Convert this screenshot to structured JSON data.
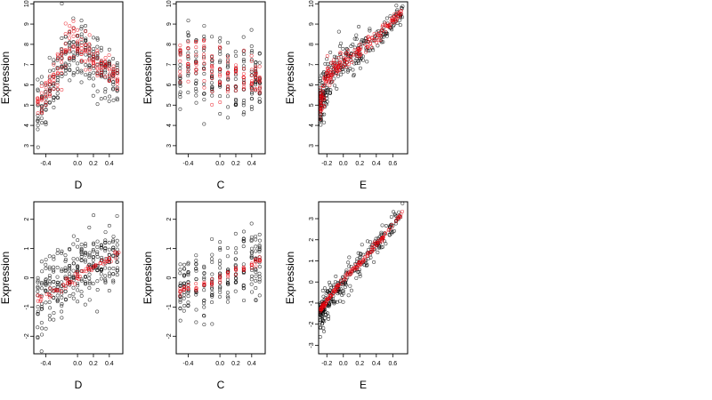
{
  "colors": {
    "black_points": "#000000",
    "red_points": "#e8000b",
    "frame": "#000000",
    "background": "#ffffff"
  },
  "chart_data": [
    {
      "type": "scatter",
      "id": "top-left",
      "xlabel": "D",
      "ylabel": "Expression",
      "xlim": [
        -0.55,
        0.57
      ],
      "ylim": [
        2.6,
        10.1
      ],
      "xticks": [
        -0.4,
        0.0,
        0.2,
        0.4
      ],
      "xtick_labels": [
        "-0.4",
        "0.0",
        "0.2",
        "0.4"
      ],
      "yticks": [
        3,
        4,
        5,
        6,
        7,
        8,
        9,
        10
      ],
      "ytick_labels": [
        "3",
        "4",
        "5",
        "6",
        "7",
        "8",
        "9",
        "10"
      ],
      "marker": "open-circle",
      "grid": false,
      "series": [
        {
          "role": "observed",
          "color": "#000000",
          "pattern": "vertical_strips",
          "x_levels": [
            -0.5,
            -0.45,
            -0.4,
            -0.35,
            -0.3,
            -0.25,
            -0.2,
            -0.15,
            -0.1,
            -0.05,
            0.0,
            0.05,
            0.1,
            0.15,
            0.2,
            0.25,
            0.3,
            0.35,
            0.4,
            0.45,
            0.5
          ],
          "center": [
            4.5,
            5.0,
            5.2,
            5.6,
            6.0,
            6.5,
            7.0,
            7.4,
            7.8,
            7.9,
            7.8,
            7.6,
            7.5,
            7.2,
            7.0,
            6.9,
            6.8,
            6.7,
            6.5,
            6.4,
            6.4
          ],
          "spread": [
            1.6,
            1.5,
            1.3,
            1.3,
            1.4,
            1.5,
            1.6,
            1.6,
            1.5,
            1.5,
            1.4,
            1.4,
            1.4,
            1.4,
            1.4,
            1.4,
            1.4,
            1.3,
            1.3,
            1.3,
            1.2
          ],
          "points_per_level": 12
        },
        {
          "role": "fitted",
          "color": "#e8000b",
          "pattern": "vertical_strips",
          "x_levels": [
            -0.5,
            -0.45,
            -0.4,
            -0.35,
            -0.3,
            -0.25,
            -0.2,
            -0.15,
            -0.1,
            -0.05,
            0.0,
            0.05,
            0.1,
            0.15,
            0.2,
            0.25,
            0.3,
            0.35,
            0.4,
            0.45,
            0.5
          ],
          "center": [
            5.0,
            5.2,
            5.5,
            5.9,
            6.4,
            6.9,
            7.3,
            7.7,
            8.0,
            8.1,
            8.0,
            7.8,
            7.6,
            7.4,
            7.2,
            7.1,
            7.0,
            6.9,
            6.7,
            6.6,
            6.5
          ],
          "spread": [
            0.8,
            0.8,
            0.8,
            0.9,
            1.0,
            1.1,
            1.2,
            1.3,
            1.2,
            1.2,
            1.1,
            1.0,
            1.0,
            1.0,
            0.9,
            0.9,
            0.9,
            0.8,
            0.8,
            0.7,
            0.7
          ],
          "points_per_level": 8
        }
      ]
    },
    {
      "type": "scatter",
      "id": "top-middle",
      "xlabel": "C",
      "ylabel": "Expression",
      "xlim": [
        -0.55,
        0.57
      ],
      "ylim": [
        2.6,
        10.1
      ],
      "xticks": [
        -0.4,
        0.0,
        0.2,
        0.4
      ],
      "xtick_labels": [
        "-0.4",
        "0.0",
        "0.2",
        "0.4"
      ],
      "yticks": [
        3,
        4,
        5,
        6,
        7,
        8,
        9,
        10
      ],
      "ytick_labels": [
        "3",
        "4",
        "5",
        "6",
        "7",
        "8",
        "9",
        "10"
      ],
      "marker": "open-circle",
      "grid": false,
      "series": [
        {
          "role": "observed",
          "color": "#000000",
          "pattern": "vertical_strips",
          "x_levels": [
            -0.5,
            -0.4,
            -0.3,
            -0.2,
            -0.1,
            0.0,
            0.1,
            0.2,
            0.3,
            0.4,
            0.45,
            0.5
          ],
          "center": [
            6.8,
            7.1,
            6.7,
            6.9,
            6.6,
            6.5,
            6.4,
            6.3,
            6.3,
            6.1,
            6.0,
            6.0
          ],
          "spread": [
            2.2,
            2.3,
            2.3,
            2.4,
            2.3,
            2.2,
            2.2,
            2.1,
            2.0,
            1.9,
            1.8,
            1.7
          ],
          "points_per_level": 16
        },
        {
          "role": "fitted",
          "color": "#e8000b",
          "pattern": "vertical_strips",
          "x_levels": [
            -0.5,
            -0.4,
            -0.3,
            -0.2,
            -0.1,
            0.0,
            0.1,
            0.2,
            0.3,
            0.4,
            0.45,
            0.5
          ],
          "center": [
            7.2,
            7.2,
            7.1,
            7.0,
            6.9,
            6.8,
            6.7,
            6.6,
            6.5,
            6.3,
            6.2,
            6.2
          ],
          "spread": [
            1.6,
            1.5,
            1.5,
            1.8,
            1.6,
            1.4,
            1.3,
            1.3,
            1.2,
            1.0,
            0.9,
            0.9
          ],
          "points_per_level": 10
        }
      ]
    },
    {
      "type": "scatter",
      "id": "top-right",
      "xlabel": "E",
      "ylabel": "Expression",
      "xlim": [
        -0.3,
        0.78
      ],
      "ylim": [
        2.6,
        10.1
      ],
      "xticks": [
        -0.2,
        0.0,
        0.2,
        0.4,
        0.6
      ],
      "xtick_labels": [
        "-0.2",
        "0.0",
        "0.2",
        "0.4",
        "0.6"
      ],
      "yticks": [
        3,
        4,
        5,
        6,
        7,
        8,
        9,
        10
      ],
      "ytick_labels": [
        "3",
        "4",
        "5",
        "6",
        "7",
        "8",
        "9",
        "10"
      ],
      "marker": "open-circle",
      "grid": false,
      "series": [
        {
          "role": "observed",
          "color": "#000000",
          "pattern": "cloud",
          "curve_x": [
            -0.28,
            -0.2,
            -0.1,
            0.0,
            0.1,
            0.2,
            0.3,
            0.4,
            0.5,
            0.6,
            0.72
          ],
          "curve_y": [
            5.0,
            6.1,
            6.8,
            7.1,
            7.4,
            7.7,
            8.0,
            8.3,
            8.7,
            9.1,
            9.6
          ],
          "spread": [
            1.4,
            1.3,
            1.1,
            1.0,
            0.9,
            0.9,
            0.8,
            0.7,
            0.6,
            0.6,
            0.4
          ],
          "n": 260,
          "x_concentration": "left"
        },
        {
          "role": "fitted",
          "color": "#e8000b",
          "pattern": "cloud",
          "curve_x": [
            -0.28,
            -0.2,
            -0.1,
            0.0,
            0.1,
            0.2,
            0.3,
            0.4,
            0.5,
            0.6,
            0.72
          ],
          "curve_y": [
            4.9,
            6.3,
            6.9,
            7.2,
            7.4,
            7.7,
            8.1,
            8.4,
            8.8,
            9.2,
            9.7
          ],
          "spread": [
            0.9,
            0.8,
            0.5,
            0.4,
            0.3,
            0.3,
            0.3,
            0.3,
            0.3,
            0.2,
            0.2
          ],
          "n": 200,
          "x_concentration": "left"
        }
      ]
    },
    {
      "type": "scatter",
      "id": "bottom-left",
      "xlabel": "D",
      "ylabel": "Expression",
      "xlim": [
        -0.55,
        0.57
      ],
      "ylim": [
        -2.6,
        2.6
      ],
      "xticks": [
        -0.4,
        0.0,
        0.2,
        0.4
      ],
      "xtick_labels": [
        "-0.4",
        "0.0",
        "0.2",
        "0.4"
      ],
      "yticks": [
        -2,
        -1,
        0,
        1,
        2
      ],
      "ytick_labels": [
        "-2",
        "-1",
        "0",
        "1",
        "2"
      ],
      "marker": "open-circle",
      "grid": false,
      "series": [
        {
          "role": "observed",
          "color": "#000000",
          "pattern": "vertical_strips",
          "x_levels": [
            -0.5,
            -0.45,
            -0.4,
            -0.35,
            -0.3,
            -0.25,
            -0.2,
            -0.15,
            -0.1,
            -0.05,
            0.0,
            0.05,
            0.1,
            0.15,
            0.2,
            0.25,
            0.3,
            0.35,
            0.4,
            0.45,
            0.5
          ],
          "center": [
            -0.9,
            -0.8,
            -0.6,
            -0.5,
            -0.4,
            -0.2,
            -0.1,
            0.0,
            0.1,
            0.2,
            0.3,
            0.3,
            0.4,
            0.4,
            0.5,
            0.5,
            0.5,
            0.6,
            0.6,
            0.7,
            0.7
          ],
          "spread": [
            1.5,
            1.4,
            1.3,
            1.3,
            1.2,
            1.2,
            1.1,
            1.1,
            1.1,
            1.1,
            1.1,
            1.1,
            1.1,
            1.1,
            1.2,
            1.2,
            1.2,
            1.2,
            1.2,
            1.3,
            1.3
          ],
          "points_per_level": 14
        },
        {
          "role": "fitted",
          "color": "#e8000b",
          "pattern": "line_band",
          "x_from": -0.5,
          "x_to": 0.52,
          "y_from": -0.75,
          "y_to": 0.85,
          "spread": 0.08,
          "n": 70
        }
      ]
    },
    {
      "type": "scatter",
      "id": "bottom-middle",
      "xlabel": "C",
      "ylabel": "Expression",
      "xlim": [
        -0.55,
        0.57
      ],
      "ylim": [
        -2.6,
        2.6
      ],
      "xticks": [
        -0.4,
        0.0,
        0.2,
        0.4
      ],
      "xtick_labels": [
        "-0.4",
        "0.0",
        "0.2",
        "0.4"
      ],
      "yticks": [
        -2,
        -1,
        0,
        1,
        2
      ],
      "ytick_labels": [
        "-2",
        "-1",
        "0",
        "1",
        "2"
      ],
      "marker": "open-circle",
      "grid": false,
      "series": [
        {
          "role": "observed",
          "color": "#000000",
          "pattern": "vertical_strips",
          "x_levels": [
            -0.5,
            -0.45,
            -0.4,
            -0.3,
            -0.2,
            -0.1,
            0.0,
            0.1,
            0.2,
            0.3,
            0.4,
            0.45,
            0.5
          ],
          "center": [
            -0.4,
            -0.3,
            -0.3,
            -0.2,
            -0.2,
            -0.1,
            0.0,
            0.1,
            0.2,
            0.3,
            0.4,
            0.5,
            0.6
          ],
          "spread": [
            1.2,
            1.1,
            1.1,
            1.2,
            1.3,
            1.2,
            1.1,
            1.1,
            1.2,
            1.2,
            1.3,
            1.3,
            1.3
          ],
          "points_per_level": 16
        },
        {
          "role": "fitted",
          "color": "#e8000b",
          "pattern": "strip_means",
          "x_levels": [
            -0.5,
            -0.45,
            -0.4,
            -0.3,
            -0.2,
            -0.1,
            0.0,
            0.1,
            0.2,
            0.3,
            0.4,
            0.45,
            0.5
          ],
          "center": [
            -0.45,
            -0.4,
            -0.35,
            -0.3,
            -0.2,
            -0.1,
            0.0,
            0.1,
            0.2,
            0.3,
            0.4,
            0.5,
            0.6
          ],
          "spread": [
            0.15,
            0.15,
            0.15,
            0.15,
            0.15,
            0.15,
            0.15,
            0.15,
            0.15,
            0.15,
            0.15,
            0.15,
            0.15
          ],
          "points_per_level": 5
        }
      ]
    },
    {
      "type": "scatter",
      "id": "bottom-right",
      "xlabel": "E",
      "ylabel": "Expression",
      "xlim": [
        -0.3,
        0.78
      ],
      "ylim": [
        -3.4,
        3.8
      ],
      "xticks": [
        -0.2,
        0.0,
        0.2,
        0.4,
        0.6
      ],
      "xtick_labels": [
        "-0.2",
        "0.0",
        "0.2",
        "0.4",
        "0.6"
      ],
      "yticks": [
        -3,
        -2,
        -1,
        0,
        1,
        2,
        3
      ],
      "ytick_labels": [
        "-3",
        "-2",
        "-1",
        "0",
        "1",
        "2",
        "3"
      ],
      "marker": "open-circle",
      "grid": false,
      "series": [
        {
          "role": "observed",
          "color": "#000000",
          "pattern": "cloud",
          "curve_x": [
            -0.28,
            -0.2,
            -0.1,
            0.0,
            0.1,
            0.2,
            0.3,
            0.4,
            0.5,
            0.6,
            0.72
          ],
          "curve_y": [
            -1.6,
            -1.0,
            -0.5,
            0.0,
            0.5,
            0.9,
            1.3,
            1.8,
            2.2,
            2.7,
            3.3
          ],
          "spread": [
            1.0,
            0.9,
            0.8,
            0.7,
            0.7,
            0.7,
            0.7,
            0.6,
            0.6,
            0.5,
            0.4
          ],
          "n": 260,
          "x_concentration": "left"
        },
        {
          "role": "fitted",
          "color": "#e8000b",
          "pattern": "cloud",
          "curve_x": [
            -0.28,
            -0.2,
            -0.1,
            0.0,
            0.1,
            0.2,
            0.3,
            0.4,
            0.5,
            0.6,
            0.72
          ],
          "curve_y": [
            -1.3,
            -0.9,
            -0.4,
            0.1,
            0.5,
            0.9,
            1.3,
            1.8,
            2.2,
            2.7,
            3.3
          ],
          "spread": [
            0.12,
            0.12,
            0.12,
            0.12,
            0.12,
            0.12,
            0.12,
            0.12,
            0.12,
            0.12,
            0.12
          ],
          "n": 150,
          "x_concentration": "left"
        }
      ]
    }
  ]
}
